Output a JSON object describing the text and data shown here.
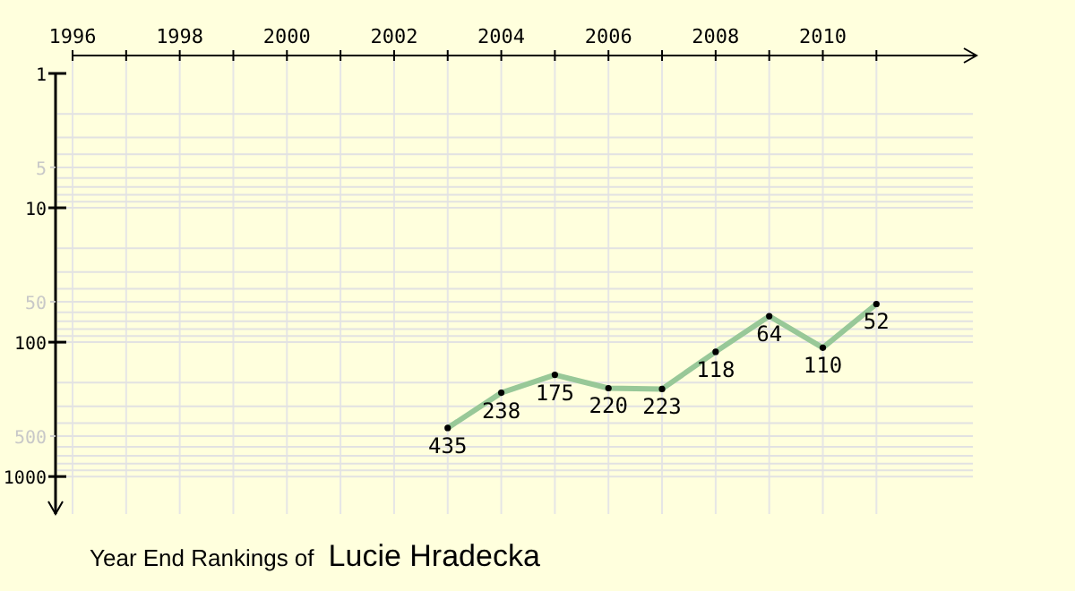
{
  "chart_data": {
    "type": "line",
    "title": "Year End Rankings of",
    "subtitle": "Lucie Hradecka",
    "x": [
      2003,
      2004,
      2005,
      2006,
      2007,
      2008,
      2009,
      2010,
      2011
    ],
    "series": [
      {
        "color": "#98c898",
        "values": [
          435,
          238,
          175,
          220,
          223,
          118,
          64,
          110,
          52
        ]
      }
    ],
    "xlim": [
      1996,
      2012.8
    ],
    "xticks": [
      1996,
      {
        "value": 1997,
        "label": null
      },
      1998,
      {
        "value": 1999,
        "label": null
      },
      2000,
      {
        "value": 2001,
        "label": null
      },
      2002,
      {
        "value": 2003,
        "label": null
      },
      2004,
      {
        "value": 2005,
        "label": null
      },
      2006,
      {
        "value": 2007,
        "label": null
      },
      2008,
      {
        "value": 2009,
        "label": null
      },
      2010,
      {
        "value": 2011,
        "label": null
      }
    ],
    "ylim": [
      1900,
      1
    ],
    "yticks": [
      1,
      5,
      10,
      50,
      100,
      500,
      1000
    ],
    "log": "y",
    "grid": true,
    "marker": "circle",
    "data_labels": true
  }
}
